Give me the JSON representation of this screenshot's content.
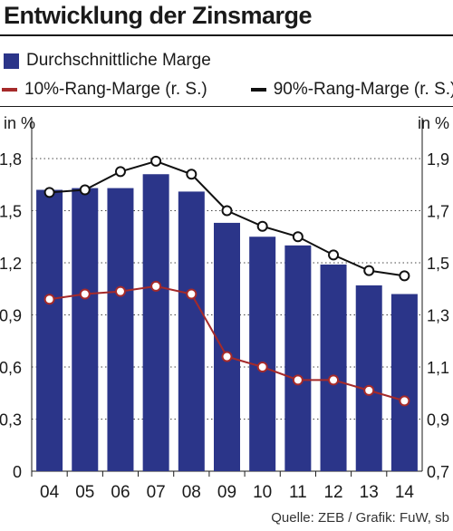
{
  "title": "Entwicklung der Zinsmarge",
  "legend": {
    "bars": "Durchschnittliche Marge",
    "line_red": "10%-Rang-Marge (r. S.)",
    "line_black": "90%-Rang-Marge (r. S.)"
  },
  "units": {
    "left": "in %",
    "right": "in %"
  },
  "source": "Quelle: ZEB / Grafik: FuW, sb",
  "colors": {
    "bar": "#2b3589",
    "red_line": "#a52a2a",
    "black_line": "#111111"
  },
  "chart_data": {
    "type": "bar",
    "categories": [
      "04",
      "05",
      "06",
      "07",
      "08",
      "09",
      "10",
      "11",
      "12",
      "13",
      "14"
    ],
    "series": [
      {
        "name": "Durchschnittliche Marge",
        "type": "bar",
        "axis": "left",
        "values": [
          1.62,
          1.63,
          1.63,
          1.71,
          1.61,
          1.43,
          1.35,
          1.3,
          1.19,
          1.07,
          1.02
        ]
      },
      {
        "name": "10%-Rang-Marge (r. S.)",
        "type": "line",
        "axis": "right",
        "values": [
          1.36,
          1.38,
          1.39,
          1.41,
          1.38,
          1.14,
          1.1,
          1.05,
          1.05,
          1.01,
          0.97
        ]
      },
      {
        "name": "90%-Rang-Marge (r. S.)",
        "type": "line",
        "axis": "right",
        "values": [
          1.77,
          1.78,
          1.85,
          1.89,
          1.84,
          1.7,
          1.64,
          1.6,
          1.53,
          1.47,
          1.45
        ]
      }
    ],
    "yaxis_left": {
      "label": "in %",
      "ylim": [
        0,
        1.8
      ],
      "ticks": [
        "0",
        "0,3",
        "0,6",
        "0,9",
        "1,2",
        "1,5",
        "1,8"
      ]
    },
    "yaxis_right": {
      "label": "in %",
      "ylim": [
        0.7,
        1.9
      ],
      "ticks": [
        "0,7",
        "0,9",
        "1,1",
        "1,3",
        "1,5",
        "1,7",
        "1,9"
      ]
    },
    "grid": "horizontal dotted",
    "legend_position": "top"
  }
}
